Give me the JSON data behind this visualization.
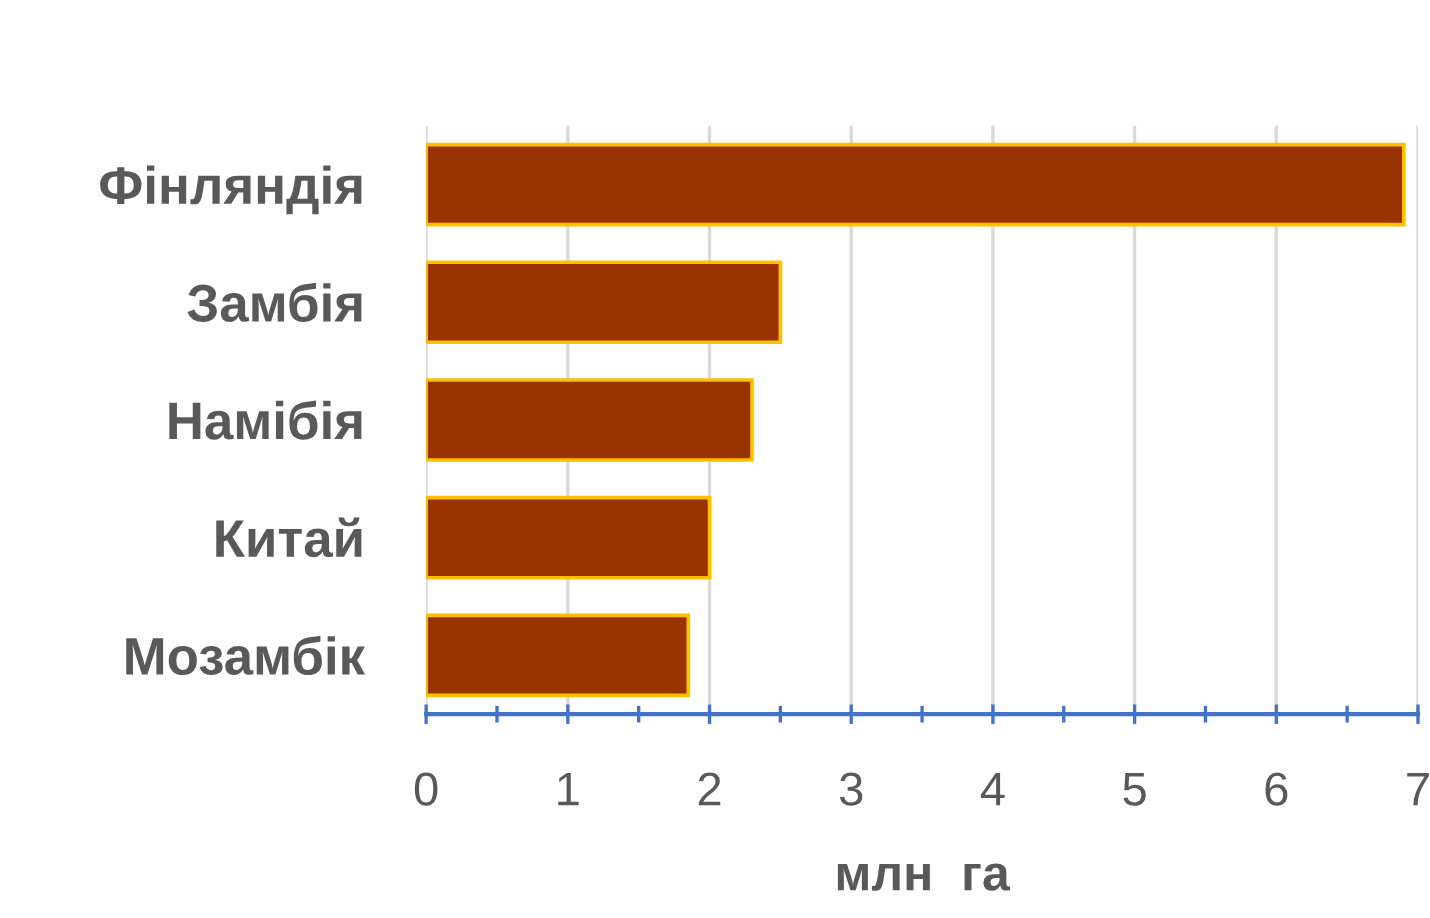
{
  "chart_data": {
    "type": "bar",
    "orientation": "horizontal",
    "categories": [
      "Фінляндія",
      "Замбія",
      "Намібія",
      "Китай",
      "Мозамбік"
    ],
    "values": [
      6.9,
      2.5,
      2.3,
      2.0,
      1.85
    ],
    "color": "#993300",
    "xlabel": "млн  га",
    "xlim": [
      0,
      7
    ],
    "xticks": [
      0,
      {
        "value": 0.5,
        "label": null
      },
      1,
      {
        "value": 1.5,
        "label": null
      },
      2,
      {
        "value": 2.5,
        "label": null
      },
      3,
      {
        "value": 3.5,
        "label": null
      },
      4,
      {
        "value": 4.5,
        "label": null
      },
      5,
      {
        "value": 5.5,
        "label": null
      },
      6,
      {
        "value": 6.5,
        "label": null
      },
      7
    ],
    "grid": "x"
  }
}
